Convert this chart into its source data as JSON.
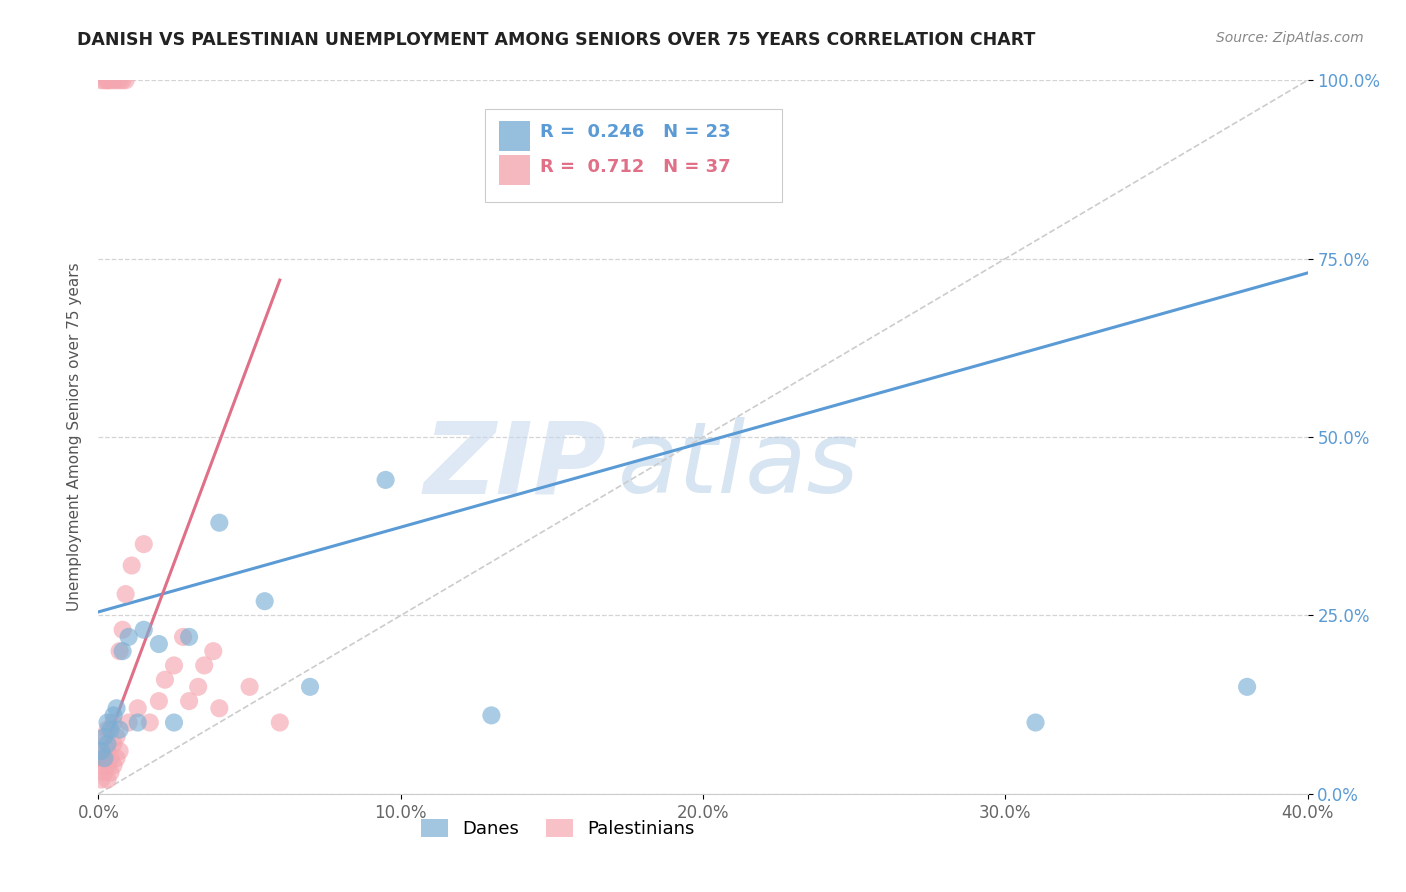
{
  "title": "DANISH VS PALESTINIAN UNEMPLOYMENT AMONG SENIORS OVER 75 YEARS CORRELATION CHART",
  "source": "Source: ZipAtlas.com",
  "ylabel": "Unemployment Among Seniors over 75 years",
  "xlim": [
    0.0,
    0.4
  ],
  "ylim": [
    0.0,
    1.0
  ],
  "xticks": [
    0.0,
    0.1,
    0.2,
    0.3,
    0.4
  ],
  "yticks": [
    0.0,
    0.25,
    0.5,
    0.75,
    1.0
  ],
  "danes_R": 0.246,
  "danes_N": 23,
  "palest_R": 0.712,
  "palest_N": 37,
  "blue_color": "#7bafd4",
  "pink_color": "#f4a7b0",
  "blue_line_color": "#5b9bd5",
  "pink_line_color": "#e07088",
  "ref_line_color": "#cccccc",
  "watermark_zip_color": "#c5d8ee",
  "watermark_atlas_color": "#a8c4e0",
  "danes_x": [
    0.001,
    0.002,
    0.002,
    0.003,
    0.003,
    0.004,
    0.005,
    0.006,
    0.007,
    0.008,
    0.01,
    0.013,
    0.015,
    0.02,
    0.025,
    0.03,
    0.04,
    0.055,
    0.07,
    0.095,
    0.13,
    0.31,
    0.38
  ],
  "danes_y": [
    0.06,
    0.05,
    0.08,
    0.07,
    0.1,
    0.09,
    0.11,
    0.12,
    0.09,
    0.2,
    0.22,
    0.1,
    0.23,
    0.21,
    0.1,
    0.22,
    0.38,
    0.27,
    0.15,
    0.44,
    0.11,
    0.1,
    0.15
  ],
  "palest_x": [
    0.001,
    0.001,
    0.001,
    0.002,
    0.002,
    0.002,
    0.003,
    0.003,
    0.003,
    0.003,
    0.004,
    0.004,
    0.005,
    0.005,
    0.005,
    0.006,
    0.006,
    0.007,
    0.007,
    0.008,
    0.009,
    0.01,
    0.011,
    0.013,
    0.015,
    0.017,
    0.02,
    0.022,
    0.025,
    0.028,
    0.03,
    0.033,
    0.035,
    0.038,
    0.04,
    0.05,
    0.06
  ],
  "palest_y": [
    0.02,
    0.04,
    0.06,
    0.03,
    0.05,
    0.08,
    0.02,
    0.04,
    0.06,
    0.09,
    0.03,
    0.05,
    0.04,
    0.07,
    0.1,
    0.05,
    0.08,
    0.06,
    0.2,
    0.23,
    0.28,
    0.1,
    0.32,
    0.12,
    0.35,
    0.1,
    0.13,
    0.16,
    0.18,
    0.22,
    0.13,
    0.15,
    0.18,
    0.2,
    0.12,
    0.15,
    0.1
  ],
  "palest_top_x": [
    0.001,
    0.002,
    0.003,
    0.003,
    0.004,
    0.005,
    0.006,
    0.007,
    0.008,
    0.009
  ],
  "palest_top_y": [
    1.0,
    1.0,
    1.0,
    1.0,
    1.0,
    1.0,
    1.0,
    1.0,
    1.0,
    1.0
  ],
  "blue_trend_x0": 0.0,
  "blue_trend_y0": 0.255,
  "blue_trend_x1": 0.4,
  "blue_trend_y1": 0.73,
  "pink_trend_x0": 0.0,
  "pink_trend_y0": 0.04,
  "pink_trend_x1": 0.06,
  "pink_trend_y1": 0.72
}
